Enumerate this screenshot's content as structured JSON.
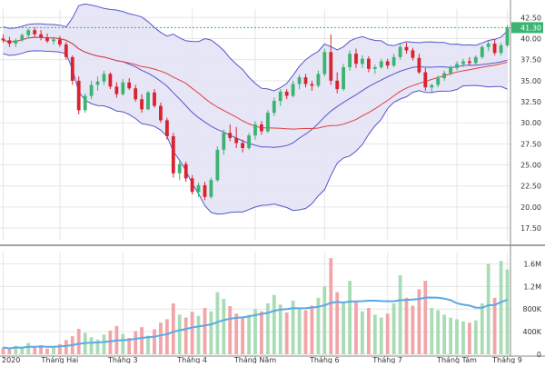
{
  "chart_data": [
    {
      "type": "candlestick",
      "panel": "price",
      "x_tick_labels": [
        "2020",
        "Tháng Hai",
        "Tháng 3",
        "Tháng 4",
        "Tháng Năm",
        "Tháng 6",
        "Tháng 7",
        "Tháng Tám",
        "Tháng 9"
      ],
      "y_ticks": [
        "17.50",
        "20.00",
        "22.50",
        "25.00",
        "27.50",
        "30.00",
        "32.50",
        "35.00",
        "37.50",
        "40.00",
        "42.50"
      ],
      "ylim": [
        16.0,
        43.5
      ],
      "last_price_label": "41.30",
      "last_price": 41.3,
      "overlays": [
        "Bollinger Bands",
        "Moving Average"
      ],
      "candles": [
        [
          40.0,
          40.5,
          39.5,
          39.8
        ],
        [
          39.8,
          40.2,
          39.0,
          39.4
        ],
        [
          39.4,
          40.0,
          39.0,
          39.8
        ],
        [
          39.8,
          40.6,
          39.6,
          40.4
        ],
        [
          40.4,
          41.2,
          40.0,
          41.0
        ],
        [
          41.0,
          41.3,
          40.2,
          40.5
        ],
        [
          40.5,
          41.0,
          39.8,
          40.1
        ],
        [
          40.1,
          40.6,
          39.5,
          39.7
        ],
        [
          39.7,
          40.2,
          39.3,
          39.9
        ],
        [
          39.9,
          40.3,
          39.0,
          39.3
        ],
        [
          39.3,
          39.6,
          37.5,
          37.8
        ],
        [
          37.8,
          38.0,
          34.5,
          35.0
        ],
        [
          35.0,
          35.5,
          31.0,
          31.5
        ],
        [
          31.5,
          33.5,
          31.2,
          33.2
        ],
        [
          33.2,
          35.0,
          32.8,
          34.5
        ],
        [
          34.5,
          35.5,
          33.8,
          34.9
        ],
        [
          34.9,
          36.2,
          34.5,
          35.8
        ],
        [
          35.8,
          36.0,
          34.0,
          34.3
        ],
        [
          34.3,
          34.8,
          33.0,
          33.4
        ],
        [
          33.4,
          35.2,
          33.2,
          34.8
        ],
        [
          34.8,
          35.3,
          33.9,
          34.1
        ],
        [
          34.1,
          34.5,
          32.5,
          32.8
        ],
        [
          32.8,
          33.4,
          31.2,
          31.6
        ],
        [
          31.6,
          33.8,
          31.5,
          33.6
        ],
        [
          33.6,
          34.0,
          31.8,
          32.0
        ],
        [
          32.0,
          32.4,
          30.0,
          30.3
        ],
        [
          30.3,
          30.6,
          28.0,
          28.4
        ],
        [
          28.4,
          28.8,
          23.5,
          24.0
        ],
        [
          24.0,
          25.5,
          23.2,
          25.1
        ],
        [
          25.1,
          25.4,
          23.0,
          23.4
        ],
        [
          23.4,
          23.8,
          21.5,
          21.8
        ],
        [
          21.8,
          22.9,
          21.2,
          22.6
        ],
        [
          22.6,
          23.0,
          20.8,
          21.2
        ],
        [
          21.2,
          23.5,
          21.0,
          23.2
        ],
        [
          23.2,
          27.2,
          23.0,
          26.8
        ],
        [
          26.8,
          29.2,
          26.2,
          28.8
        ],
        [
          28.8,
          29.8,
          27.8,
          28.2
        ],
        [
          28.2,
          29.5,
          27.0,
          27.6
        ],
        [
          27.6,
          28.0,
          26.5,
          27.0
        ],
        [
          27.0,
          28.8,
          26.8,
          28.5
        ],
        [
          28.5,
          30.2,
          28.0,
          29.8
        ],
        [
          29.8,
          30.2,
          28.6,
          29.0
        ],
        [
          29.0,
          31.5,
          28.8,
          31.2
        ],
        [
          31.2,
          33.0,
          30.8,
          32.6
        ],
        [
          32.6,
          34.0,
          32.0,
          33.7
        ],
        [
          33.7,
          34.0,
          32.8,
          33.2
        ],
        [
          33.2,
          35.0,
          33.0,
          34.6
        ],
        [
          34.6,
          35.7,
          34.0,
          35.4
        ],
        [
          35.4,
          35.8,
          34.2,
          34.6
        ],
        [
          34.6,
          35.0,
          33.8,
          34.4
        ],
        [
          34.4,
          36.2,
          34.2,
          35.8
        ],
        [
          35.8,
          38.8,
          35.5,
          38.4
        ],
        [
          38.4,
          40.5,
          34.5,
          35.0
        ],
        [
          35.0,
          36.0,
          33.5,
          34.0
        ],
        [
          34.0,
          37.0,
          33.8,
          36.6
        ],
        [
          36.6,
          38.6,
          36.2,
          38.2
        ],
        [
          38.2,
          38.8,
          36.5,
          37.0
        ],
        [
          37.0,
          38.0,
          36.5,
          37.6
        ],
        [
          37.6,
          37.9,
          36.0,
          36.4
        ],
        [
          36.4,
          36.9,
          35.8,
          36.6
        ],
        [
          36.6,
          37.6,
          36.4,
          37.3
        ],
        [
          37.3,
          37.6,
          36.4,
          36.8
        ],
        [
          36.8,
          38.2,
          36.6,
          37.8
        ],
        [
          37.8,
          39.4,
          37.5,
          39.0
        ],
        [
          39.0,
          39.5,
          38.2,
          38.6
        ],
        [
          38.6,
          38.9,
          37.4,
          37.7
        ],
        [
          37.7,
          38.2,
          35.8,
          36.0
        ],
        [
          36.0,
          36.5,
          33.8,
          34.2
        ],
        [
          34.2,
          34.6,
          33.5,
          34.5
        ],
        [
          34.5,
          35.6,
          34.2,
          35.3
        ],
        [
          35.3,
          36.2,
          35.0,
          35.9
        ],
        [
          35.9,
          36.8,
          35.6,
          36.5
        ],
        [
          36.5,
          37.3,
          36.2,
          37.0
        ],
        [
          37.0,
          37.6,
          36.6,
          37.3
        ],
        [
          37.3,
          37.8,
          36.8,
          37.1
        ],
        [
          37.1,
          38.0,
          36.9,
          37.8
        ],
        [
          37.8,
          39.2,
          37.6,
          39.0
        ],
        [
          39.0,
          39.7,
          38.5,
          39.4
        ],
        [
          39.4,
          39.9,
          38.0,
          38.3
        ],
        [
          38.3,
          39.5,
          38.0,
          39.2
        ],
        [
          39.2,
          41.6,
          39.0,
          41.3
        ]
      ]
    },
    {
      "type": "bar",
      "panel": "volume",
      "y_ticks": [
        "0",
        "400K",
        "800K",
        "1.2M",
        "1.6M"
      ],
      "ylim": [
        0,
        1800000
      ],
      "overlays": [
        "Volume moving average"
      ],
      "values": [
        120000,
        90000,
        150000,
        110000,
        200000,
        130000,
        160000,
        100000,
        140000,
        180000,
        250000,
        320000,
        450000,
        380000,
        300000,
        260000,
        350000,
        420000,
        500000,
        360000,
        290000,
        410000,
        480000,
        330000,
        440000,
        560000,
        620000,
        900000,
        700000,
        650000,
        750000,
        680000,
        820000,
        760000,
        1100000,
        980000,
        850000,
        720000,
        640000,
        700000,
        800000,
        760000,
        900000,
        1050000,
        880000,
        740000,
        950000,
        820000,
        780000,
        860000,
        1000000,
        1200000,
        1700000,
        1100000,
        900000,
        1300000,
        950000,
        760000,
        820000,
        700000,
        650000,
        720000,
        900000,
        1400000,
        1000000,
        860000,
        1150000,
        1300000,
        820000,
        780000,
        700000,
        650000,
        620000,
        580000,
        560000,
        600000,
        900000,
        1600000,
        1000000,
        1650000,
        1500000
      ]
    }
  ],
  "colors": {
    "up": "#3cb371",
    "down": "#d9232e",
    "up_volume": "#a8dcb4",
    "down_volume": "#f2a5a8",
    "band_fill": "#e3e3f5",
    "band_line": "#5555cc",
    "ma_line": "#e04040",
    "volume_ma": "#5aa9e6",
    "last_price_box": "#3cb371",
    "grid": "#e6e6e6"
  }
}
